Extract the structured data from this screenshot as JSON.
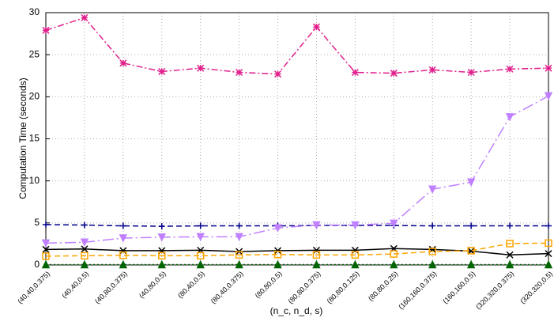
{
  "chart_data": {
    "type": "line",
    "x_label": "(n_c, n_d, s)",
    "y_label": "Computation Time (seconds)",
    "categories": [
      "(40,40,0.375)",
      "(40,40,0.5)",
      "(40,80,0.375)",
      "(40,80,0.5)",
      "(80,40,0.5)",
      "(80,40,0.375)",
      "(80,80,0.5)",
      "(80,80,0.375)",
      "(80,80,0.125)",
      "(80,80,0.25)",
      "(160,160,0.375)",
      "(160,160,0.5)",
      "(320,320,0.375)",
      "(320,320,0.5)"
    ],
    "series": [
      {
        "color": "#e0208c",
        "line_style": "dashdot",
        "marker": "star",
        "values": [
          27.9,
          29.4,
          24.0,
          23.0,
          23.4,
          22.9,
          22.7,
          28.3,
          22.9,
          22.8,
          23.2,
          22.9,
          23.3,
          23.4
        ]
      },
      {
        "color": "#00008b",
        "line_style": "dashed",
        "marker": "plus",
        "values": [
          4.8,
          4.75,
          4.65,
          4.6,
          4.65,
          4.65,
          4.65,
          4.7,
          4.7,
          4.7,
          4.65,
          4.65,
          4.65,
          4.65
        ]
      },
      {
        "color": "#c080ff",
        "line_style": "longdashdot",
        "marker": "triangle-down",
        "values": [
          2.6,
          2.7,
          3.2,
          3.3,
          3.35,
          3.35,
          4.4,
          4.75,
          4.75,
          4.95,
          9.0,
          9.85,
          17.6,
          20.1
        ]
      },
      {
        "color": "#000000",
        "line_style": "solid",
        "marker": "x",
        "values": [
          1.85,
          1.9,
          1.7,
          1.7,
          1.75,
          1.6,
          1.7,
          1.75,
          1.75,
          1.95,
          1.85,
          1.65,
          1.2,
          1.35
        ]
      },
      {
        "color": "#ffa500",
        "line_style": "dashed",
        "marker": "square",
        "values": [
          1.05,
          1.1,
          1.15,
          1.1,
          1.1,
          1.2,
          1.25,
          1.2,
          1.2,
          1.3,
          1.6,
          1.7,
          2.55,
          2.6
        ]
      },
      {
        "color": "#006400",
        "line_style": "dotted",
        "marker": "triangle-up",
        "values": [
          0.05,
          0.05,
          0.05,
          0.05,
          0.05,
          0.05,
          0.05,
          0.05,
          0.05,
          0.05,
          0.05,
          0.05,
          0.05,
          0.05
        ]
      }
    ],
    "ylim": [
      0,
      30
    ],
    "yticks": [
      0,
      5,
      10,
      15,
      20,
      25,
      30
    ],
    "grid": true
  }
}
